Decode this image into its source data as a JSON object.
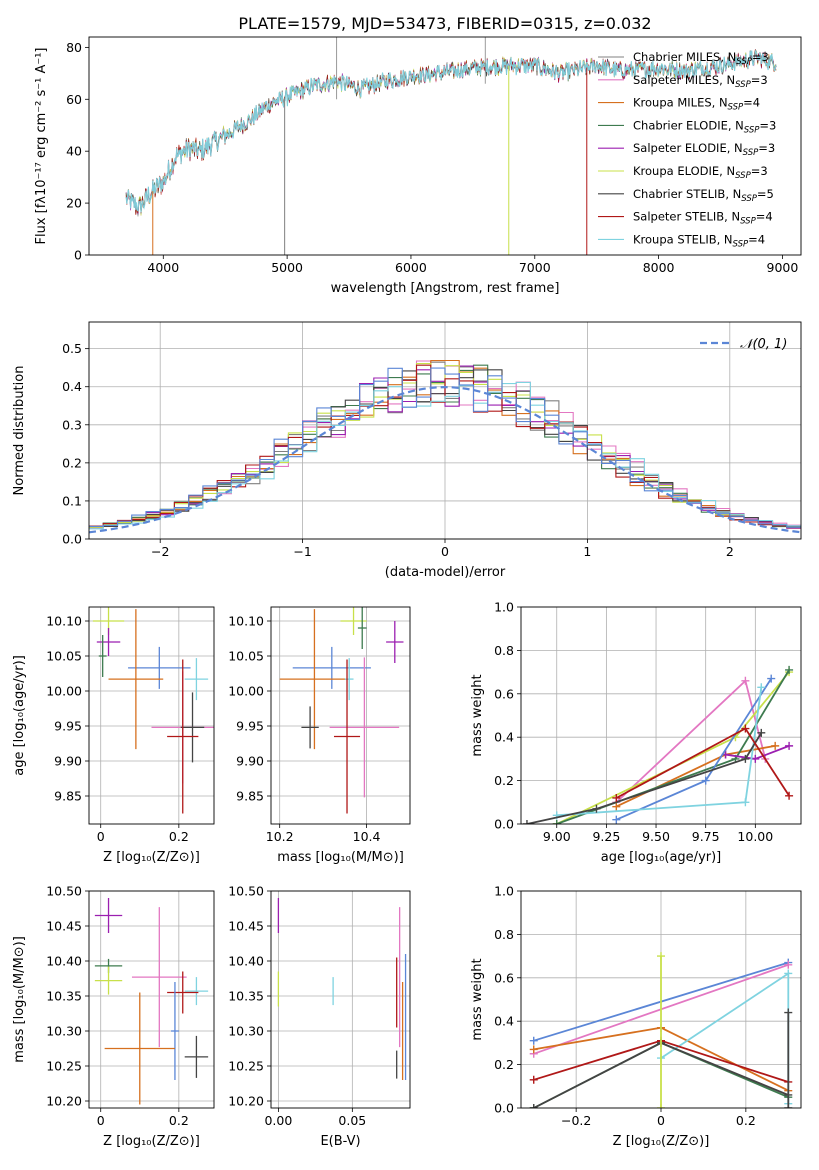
{
  "figure": {
    "title": "PLATE=1579, MJD=53473, FIBERID=0315, z=0.032"
  },
  "colors": {
    "chabrier_miles": "#808080",
    "salpeter_miles": "#e377c2",
    "kroupa_miles": "#d6701f",
    "chabrier_elodie": "#3e7b4f",
    "salpeter_elodie": "#9b1fb0",
    "kroupa_elodie": "#c8e04a",
    "chabrier_stelib": "#444444",
    "salpeter_stelib": "#b01818",
    "kroupa_stelib": "#7fd3e0",
    "blue": "#5b86d6",
    "grid": "#b0b0b0"
  },
  "chart_data": [
    {
      "id": "spectrum",
      "type": "line",
      "xlabel": "wavelength [Angstrom, rest frame]",
      "ylabel": "Flux [fλ10⁻¹⁷ erg cm⁻² s⁻¹ A⁻¹]",
      "xlim": [
        3400,
        9150
      ],
      "ylim": [
        0,
        84
      ],
      "xticks": [
        4000,
        5000,
        6000,
        7000,
        8000,
        9000
      ],
      "yticks": [
        0,
        20,
        40,
        60,
        80
      ],
      "spectrum_knots": [
        [
          3700,
          22
        ],
        [
          3800,
          18
        ],
        [
          3900,
          24
        ],
        [
          4000,
          28
        ],
        [
          4100,
          38
        ],
        [
          4200,
          41
        ],
        [
          4300,
          40
        ],
        [
          4500,
          46
        ],
        [
          4700,
          52
        ],
        [
          4850,
          58
        ],
        [
          5000,
          61
        ],
        [
          5200,
          65
        ],
        [
          5400,
          67
        ],
        [
          5600,
          64
        ],
        [
          5800,
          67
        ],
        [
          6000,
          69
        ],
        [
          6200,
          70
        ],
        [
          6500,
          72
        ],
        [
          6800,
          73
        ],
        [
          7000,
          73
        ],
        [
          7200,
          70
        ],
        [
          7500,
          73
        ],
        [
          7700,
          71
        ],
        [
          8000,
          72
        ],
        [
          8200,
          71
        ],
        [
          8500,
          73
        ],
        [
          8800,
          76
        ],
        [
          8950,
          74
        ]
      ],
      "dropouts": [
        {
          "x": 3915,
          "y_min": 0,
          "series": "kroupa_miles"
        },
        {
          "x": 4980,
          "y_min": 0,
          "series": "chabrier_miles"
        },
        {
          "x": 6790,
          "y_min": 0,
          "series": "kroupa_elodie"
        },
        {
          "x": 7420,
          "y_min": 0,
          "series": "salpeter_stelib"
        }
      ],
      "grid": false,
      "legend_position": "right",
      "legend": [
        {
          "key": "chabrier_miles",
          "base": "Chabrier MILES, N",
          "sub": "SSP",
          "value": "=3"
        },
        {
          "key": "salpeter_miles",
          "base": "Salpeter MILES, N",
          "sub": "SSP",
          "value": "=3"
        },
        {
          "key": "kroupa_miles",
          "base": "Kroupa MILES, N",
          "sub": "SSP",
          "value": "=4"
        },
        {
          "key": "chabrier_elodie",
          "base": "Chabrier ELODIE, N",
          "sub": "SSP",
          "value": "=3"
        },
        {
          "key": "salpeter_elodie",
          "base": "Salpeter ELODIE, N",
          "sub": "SSP",
          "value": "=3"
        },
        {
          "key": "kroupa_elodie",
          "base": "Kroupa ELODIE, N",
          "sub": "SSP",
          "value": "=3"
        },
        {
          "key": "chabrier_stelib",
          "base": "Chabrier STELIB, N",
          "sub": "SSP",
          "value": "=5"
        },
        {
          "key": "salpeter_stelib",
          "base": "Salpeter STELIB, N",
          "sub": "SSP",
          "value": "=4"
        },
        {
          "key": "kroupa_stelib",
          "base": "Kroupa STELIB, N",
          "sub": "SSP",
          "value": "=4"
        }
      ]
    },
    {
      "id": "residuals",
      "type": "histogram",
      "xlabel": "(data-model)/error",
      "ylabel": "Normed distribution",
      "xlim": [
        -2.5,
        2.5
      ],
      "ylim": [
        0,
        0.57
      ],
      "xticks": [
        -2,
        -1,
        0,
        1,
        2
      ],
      "yticks": [
        0.0,
        0.1,
        0.2,
        0.3,
        0.4,
        0.5
      ],
      "bin_width": 0.1,
      "grid": true,
      "legend_position": "top-right",
      "gaussian_label": "𝒩(0, 1)",
      "gaussian": {
        "mean": 0,
        "sigma": 1
      }
    },
    {
      "id": "age_vs_Z",
      "type": "errorbar",
      "xlabel": "Z [log₁₀(Z/Z⊙)]",
      "ylabel": "age  [log₁₀(age/yr)]",
      "xlim": [
        -0.03,
        0.29
      ],
      "ylim": [
        9.81,
        10.12
      ],
      "xticks": [
        0.0,
        0.2
      ],
      "yticks": [
        9.85,
        9.9,
        9.95,
        10.0,
        10.05,
        10.1
      ],
      "grid": true,
      "points": [
        {
          "s": "kroupa_elodie",
          "x": 0.02,
          "y": 10.1,
          "xerr": 0.04,
          "yerr": 0.02
        },
        {
          "s": "salpeter_elodie",
          "x": 0.02,
          "y": 10.07,
          "xerr": 0.03,
          "yerr": 0.02
        },
        {
          "s": "chabrier_elodie",
          "x": 0.005,
          "y": 10.05,
          "xerr": 0.01,
          "yerr": 0.03
        },
        {
          "s": "blue",
          "x": 0.15,
          "y": 10.033,
          "xerr": 0.08,
          "yerr": 0.03
        },
        {
          "s": "kroupa_miles",
          "x": 0.09,
          "y": 10.017,
          "xerr": 0.07,
          "yerr": 0.1
        },
        {
          "s": "kroupa_stelib",
          "x": 0.245,
          "y": 10.017,
          "xerr": 0.03,
          "yerr": 0.03
        },
        {
          "s": "salpeter_miles",
          "x": 0.21,
          "y": 9.948,
          "xerr": 0.08,
          "yerr": 0.08
        },
        {
          "s": "chabrier_stelib",
          "x": 0.235,
          "y": 9.948,
          "xerr": 0.03,
          "yerr": 0.05
        },
        {
          "s": "salpeter_stelib",
          "x": 0.21,
          "y": 9.935,
          "xerr": 0.04,
          "yerr": 0.11
        }
      ]
    },
    {
      "id": "age_vs_mass",
      "type": "errorbar",
      "xlabel": "mass [log₁₀(M/M⊙)]",
      "ylabel": "",
      "xlim": [
        10.18,
        10.5
      ],
      "ylim": [
        9.81,
        10.12
      ],
      "xticks": [
        10.2,
        10.4
      ],
      "yticks": [
        9.85,
        9.9,
        9.95,
        10.0,
        10.05,
        10.1
      ],
      "grid": true,
      "points": [
        {
          "s": "kroupa_elodie",
          "x": 10.37,
          "y": 10.1,
          "xerr": 0.03,
          "yerr": 0.02
        },
        {
          "s": "salpeter_elodie",
          "x": 10.465,
          "y": 10.07,
          "xerr": 0.02,
          "yerr": 0.03
        },
        {
          "s": "chabrier_elodie",
          "x": 10.39,
          "y": 10.09,
          "xerr": 0.01,
          "yerr": 0.03
        },
        {
          "s": "blue",
          "x": 10.32,
          "y": 10.033,
          "xerr": 0.09,
          "yerr": 0.03
        },
        {
          "s": "kroupa_miles",
          "x": 10.28,
          "y": 10.017,
          "xerr": 0.08,
          "yerr": 0.1
        },
        {
          "s": "kroupa_stelib",
          "x": 10.36,
          "y": 10.017,
          "xerr": 0.01,
          "yerr": 0.03
        },
        {
          "s": "salpeter_miles",
          "x": 10.395,
          "y": 9.948,
          "xerr": 0.08,
          "yerr": 0.1
        },
        {
          "s": "chabrier_stelib",
          "x": 10.27,
          "y": 9.948,
          "xerr": 0.02,
          "yerr": 0.03
        },
        {
          "s": "salpeter_stelib",
          "x": 10.355,
          "y": 9.935,
          "xerr": 0.03,
          "yerr": 0.11
        }
      ]
    },
    {
      "id": "weight_vs_age",
      "type": "line",
      "xlabel": "age  [log₁₀(age/yr)]",
      "ylabel": "mass weight",
      "xlim": [
        8.82,
        10.23
      ],
      "ylim": [
        0,
        1
      ],
      "xticks": [
        9.0,
        9.25,
        9.5,
        9.75,
        10.0
      ],
      "xticklabels": [
        "9.00",
        "9.25",
        "9.50",
        "9.75",
        "10.00"
      ],
      "yticks": [
        0.0,
        0.2,
        0.4,
        0.6,
        0.8,
        1.0
      ],
      "grid": true,
      "series": [
        {
          "s": "salpeter_miles",
          "x": [
            9.3,
            9.95,
            10.05
          ],
          "y": [
            0.1,
            0.66,
            0.3
          ]
        },
        {
          "s": "kroupa_miles",
          "x": [
            9.3,
            9.85,
            10.1
          ],
          "y": [
            0.08,
            0.32,
            0.36
          ]
        },
        {
          "s": "kroupa_elodie",
          "x": [
            9.0,
            9.9,
            10.17
          ],
          "y": [
            0.0,
            0.4,
            0.7
          ]
        },
        {
          "s": "chabrier_elodie",
          "x": [
            9.0,
            9.9,
            10.17
          ],
          "y": [
            0.0,
            0.3,
            0.71
          ]
        },
        {
          "s": "salpeter_elodie",
          "x": [
            9.85,
            10.0,
            10.17
          ],
          "y": [
            0.32,
            0.3,
            0.36
          ]
        },
        {
          "s": "blue",
          "x": [
            9.3,
            9.75,
            10.08
          ],
          "y": [
            0.02,
            0.2,
            0.67
          ]
        },
        {
          "s": "kroupa_stelib",
          "x": [
            9.0,
            9.95,
            10.03
          ],
          "y": [
            0.04,
            0.1,
            0.63
          ]
        },
        {
          "s": "chabrier_stelib",
          "x": [
            8.85,
            9.2,
            9.95,
            10.03
          ],
          "y": [
            0.0,
            0.07,
            0.3,
            0.42
          ]
        },
        {
          "s": "salpeter_stelib",
          "x": [
            9.3,
            9.95,
            10.17
          ],
          "y": [
            0.12,
            0.44,
            0.13
          ]
        }
      ]
    },
    {
      "id": "mass_vs_Z",
      "type": "errorbar",
      "xlabel": "Z [log₁₀(Z/Z⊙)]",
      "ylabel": "mass [log₁₀(M/M⊙)]",
      "xlim": [
        -0.03,
        0.29
      ],
      "ylim": [
        10.19,
        10.5
      ],
      "xticks": [
        0.0,
        0.2
      ],
      "yticks": [
        10.2,
        10.25,
        10.3,
        10.35,
        10.4,
        10.45,
        10.5
      ],
      "grid": true,
      "points": [
        {
          "s": "salpeter_elodie",
          "x": 0.02,
          "y": 10.465,
          "xerr": 0.035,
          "yerr": 0.025
        },
        {
          "s": "chabrier_elodie",
          "x": 0.02,
          "y": 10.393,
          "xerr": 0.035,
          "yerr": 0.01
        },
        {
          "s": "kroupa_elodie",
          "x": 0.02,
          "y": 10.372,
          "xerr": 0.035,
          "yerr": 0.02
        },
        {
          "s": "salpeter_miles",
          "x": 0.15,
          "y": 10.377,
          "xerr": 0.07,
          "yerr": 0.1
        },
        {
          "s": "kroupa_stelib",
          "x": 0.245,
          "y": 10.357,
          "xerr": 0.03,
          "yerr": 0.02
        },
        {
          "s": "salpeter_stelib",
          "x": 0.21,
          "y": 10.355,
          "xerr": 0.04,
          "yerr": 0.03
        },
        {
          "s": "blue",
          "x": 0.19,
          "y": 10.3,
          "xerr": 0.01,
          "yerr": 0.07
        },
        {
          "s": "kroupa_miles",
          "x": 0.1,
          "y": 10.275,
          "xerr": 0.09,
          "yerr": 0.08
        },
        {
          "s": "chabrier_stelib",
          "x": 0.245,
          "y": 10.263,
          "xerr": 0.03,
          "yerr": 0.03
        }
      ]
    },
    {
      "id": "mass_vs_ebv",
      "type": "errorbar",
      "xlabel": "E(B-V)",
      "ylabel": "",
      "xlim": [
        -0.005,
        0.089
      ],
      "ylim": [
        10.19,
        10.5
      ],
      "xticks": [
        0.0,
        0.05
      ],
      "xticklabels": [
        "0.00",
        "0.05"
      ],
      "yticks": [
        10.2,
        10.25,
        10.3,
        10.35,
        10.4,
        10.45,
        10.5
      ],
      "grid": true,
      "points": [
        {
          "s": "salpeter_elodie",
          "x": 0.0,
          "y": 10.465,
          "xerr": 0,
          "yerr": 0.025
        },
        {
          "s": "kroupa_elodie",
          "x": 0.0,
          "y": 10.36,
          "xerr": 0,
          "yerr": 0.025
        },
        {
          "s": "kroupa_stelib",
          "x": 0.037,
          "y": 10.357,
          "xerr": 0,
          "yerr": 0.02
        },
        {
          "s": "salpeter_miles",
          "x": 0.082,
          "y": 10.377,
          "xerr": 0,
          "yerr": 0.1
        },
        {
          "s": "salpeter_stelib",
          "x": 0.08,
          "y": 10.355,
          "xerr": 0,
          "yerr": 0.05
        },
        {
          "s": "kroupa_miles",
          "x": 0.084,
          "y": 10.3,
          "xerr": 0,
          "yerr": 0.07
        },
        {
          "s": "blue",
          "x": 0.086,
          "y": 10.32,
          "xerr": 0,
          "yerr": 0.09
        },
        {
          "s": "chabrier_stelib",
          "x": 0.08,
          "y": 10.252,
          "xerr": 0,
          "yerr": 0.02
        }
      ]
    },
    {
      "id": "weight_vs_Z",
      "type": "line",
      "xlabel": "Z [log₁₀(Z/Z⊙)]",
      "ylabel": "mass weight",
      "xlim": [
        -0.33,
        0.33
      ],
      "ylim": [
        0,
        1
      ],
      "xticks": [
        -0.2,
        0.0,
        0.2
      ],
      "yticks": [
        0.0,
        0.2,
        0.4,
        0.6,
        0.8,
        1.0
      ],
      "grid": true,
      "series": [
        {
          "s": "blue",
          "x": [
            -0.3,
            0.3
          ],
          "y": [
            0.31,
            0.67
          ]
        },
        {
          "s": "salpeter_miles",
          "x": [
            -0.3,
            0.3
          ],
          "y": [
            0.25,
            0.66
          ]
        },
        {
          "s": "kroupa_miles",
          "x": [
            -0.3,
            0.0,
            0.3
          ],
          "y": [
            0.27,
            0.37,
            0.08
          ]
        },
        {
          "s": "kroupa_stelib",
          "x": [
            0.0,
            0.3,
            0.3
          ],
          "y": [
            0.23,
            0.62,
            0.02
          ]
        },
        {
          "s": "salpeter_stelib",
          "x": [
            -0.3,
            0.0,
            0.3
          ],
          "y": [
            0.13,
            0.31,
            0.12
          ]
        },
        {
          "s": "chabrier_elodie",
          "x": [
            -0.3,
            0.0,
            0.3
          ],
          "y": [
            0.0,
            0.3,
            0.05
          ]
        },
        {
          "s": "chabrier_stelib",
          "x": [
            -0.3,
            0.0,
            0.3
          ],
          "y": [
            0.0,
            0.3,
            0.06
          ]
        },
        {
          "s": "kroupa_elodie",
          "x": [
            0.0,
            0.0
          ],
          "y": [
            0.0,
            0.7
          ]
        },
        {
          "s": "chabrier_stelib",
          "x": [
            0.3,
            0.3
          ],
          "y": [
            0.0,
            0.44
          ]
        }
      ]
    }
  ]
}
